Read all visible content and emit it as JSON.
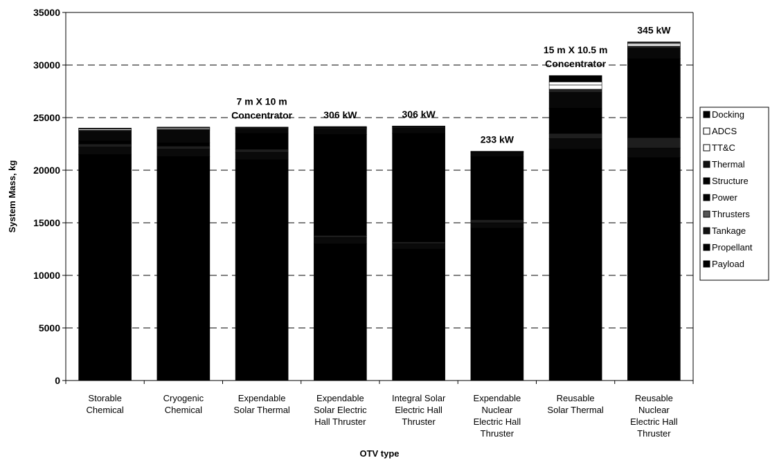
{
  "chart_data": {
    "type": "bar",
    "stacked": true,
    "title": "",
    "xlabel": "OTV type",
    "ylabel": "System Mass, kg",
    "ylim": [
      0,
      35000
    ],
    "yticks": [
      0,
      5000,
      10000,
      15000,
      20000,
      25000,
      30000,
      35000
    ],
    "grid": "horizontal dashed",
    "legend_position": "right",
    "categories": [
      [
        "Storable",
        "Chemical"
      ],
      [
        "Cryogenic",
        "Chemical"
      ],
      [
        "Expendable",
        "Solar Thermal"
      ],
      [
        "Expendable",
        "Solar Electric",
        "Hall Thruster"
      ],
      [
        "Integral Solar",
        "Electric Hall",
        "Thruster"
      ],
      [
        "Expendable",
        "Nuclear",
        "Electric Hall",
        "Thruster"
      ],
      [
        "Reusable",
        "Solar Thermal"
      ],
      [
        "Reusable",
        "Nuclear",
        "Electric Hall",
        "Thruster"
      ]
    ],
    "legend": [
      "Docking",
      "ADCS",
      "TT&C",
      "Thermal",
      "Structure",
      "Power",
      "Thrusters",
      "Tankage",
      "Propellant",
      "Payload"
    ],
    "legend_colors": [
      "#000000",
      "#ffffff",
      "#ffffff",
      "#111111",
      "#000000",
      "#000000",
      "#555555",
      "#111111",
      "#000000",
      "#000000"
    ],
    "totals": [
      24000,
      24100,
      24100,
      24150,
      24200,
      21800,
      29000,
      32200
    ],
    "series": [
      {
        "name": "Payload",
        "values": [
          5000,
          5000,
          5000,
          5000,
          5000,
          5000,
          5000,
          5000
        ]
      },
      {
        "name": "Propellant",
        "values": [
          16500,
          16300,
          16000,
          8000,
          7500,
          9500,
          17000,
          16200
        ]
      },
      {
        "name": "Tankage",
        "values": [
          700,
          700,
          700,
          600,
          500,
          500,
          1000,
          900
        ]
      },
      {
        "name": "Thrusters",
        "values": [
          300,
          300,
          300,
          200,
          200,
          300,
          500,
          1000
        ]
      },
      {
        "name": "Power",
        "values": [
          300,
          300,
          1500,
          9600,
          10300,
          6000,
          2400,
          7500
        ]
      },
      {
        "name": "Structure",
        "values": [
          900,
          1200,
          400,
          500,
          500,
          400,
          1500,
          1000
        ]
      },
      {
        "name": "Thermal",
        "values": [
          100,
          100,
          100,
          100,
          100,
          50,
          300,
          200
        ]
      },
      {
        "name": "TT&C",
        "values": [
          100,
          100,
          50,
          50,
          50,
          30,
          400,
          200
        ]
      },
      {
        "name": "ADCS",
        "values": [
          50,
          50,
          30,
          30,
          20,
          20,
          300,
          100
        ]
      },
      {
        "name": "Docking",
        "values": [
          50,
          50,
          20,
          70,
          30,
          0,
          600,
          100
        ]
      }
    ],
    "annotations": [
      {
        "category_index": 2,
        "lines": [
          "7 m X 10 m",
          "Concentrator"
        ]
      },
      {
        "category_index": 3,
        "lines": [
          "306 kW"
        ]
      },
      {
        "category_index": 4,
        "lines": [
          "306 kW"
        ]
      },
      {
        "category_index": 5,
        "lines": [
          "233 kW"
        ]
      },
      {
        "category_index": 6,
        "lines": [
          "15 m X 10.5 m",
          "Concentrator"
        ]
      },
      {
        "category_index": 7,
        "lines": [
          "345 kW"
        ]
      }
    ]
  }
}
